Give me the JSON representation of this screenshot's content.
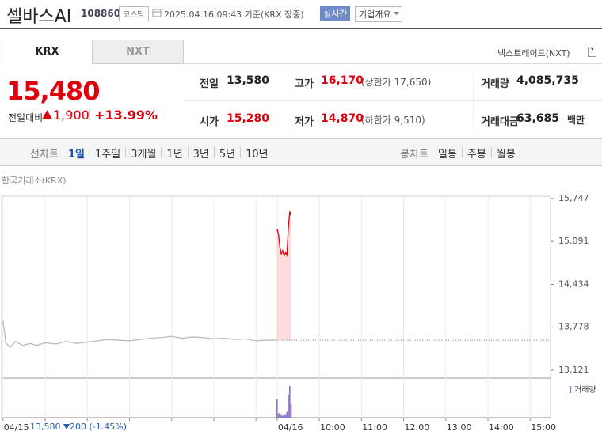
{
  "header": {
    "name": "셀바스AI",
    "code": "108860",
    "market": "코스닥",
    "timestamp": "2025.04.16 09:43 기준(KRX 장중)",
    "realtime": "실시간",
    "company": "기업개요"
  },
  "tabs": [
    "KRX",
    "NXT"
  ],
  "nxt_label": "넥스트레이드(NXT)",
  "help": "?",
  "price": {
    "current": "15,480",
    "change_label": "전일대비",
    "change": "1,900",
    "change_pct": "+13.99%"
  },
  "stats": [
    [
      {
        "label": "전일",
        "value": "13,580"
      },
      {
        "label": "고가",
        "value": "16,170",
        "note": "(상한가 17,650)"
      },
      {
        "label": "거래량",
        "value": "4,085,735"
      }
    ],
    [
      {
        "label": "시가",
        "value": "15,280"
      },
      {
        "label": "저가",
        "value": "14,870",
        "note": "(하한가 9,510)"
      },
      {
        "label": "거래대금",
        "value": "63,685",
        "unit": "백만"
      }
    ]
  ],
  "line_chart_label": "선차트",
  "periods": [
    "1일",
    "1주일",
    "3개월",
    "1년",
    "3년",
    "5년",
    "10년"
  ],
  "candle_label": "봉차트",
  "candles": [
    "일봉",
    "주봉",
    "월봉"
  ],
  "source": "한국거래소(KRX)",
  "footer": {
    "prev_close": "13,580",
    "change": "200",
    "pct": "(-1.45%)"
  },
  "chart_data": [
    {
      "type": "line",
      "xlim": [
        -392,
        389
      ],
      "xticks": [
        {
          "value": -390,
          "label": "04/15"
        },
        {
          "value": -330,
          "label": null
        },
        {
          "value": -270,
          "label": null
        },
        {
          "value": -210,
          "label": null
        },
        {
          "value": -150,
          "label": null
        },
        {
          "value": -90,
          "label": null
        },
        {
          "value": -30,
          "label": null
        },
        {
          "value": 0,
          "label": "04/16"
        },
        {
          "value": 60,
          "label": "10:00"
        },
        {
          "value": 120,
          "label": "11:00"
        },
        {
          "value": 180,
          "label": "12:00"
        },
        {
          "value": 240,
          "label": "13:00"
        },
        {
          "value": 300,
          "label": "14:00"
        },
        {
          "value": 360,
          "label": "15:00"
        }
      ],
      "ylim": [
        13000,
        15783
      ],
      "yticks": [
        {
          "value": 15747,
          "label": "15,747"
        },
        {
          "value": 15091,
          "label": "15,091"
        },
        {
          "value": 14434,
          "label": "14,434"
        },
        {
          "value": 13778,
          "label": "13,778"
        },
        {
          "value": 13121,
          "label": "13,121"
        }
      ],
      "prev_close": 13580,
      "series": [
        {
          "color": "#bbbbbb",
          "x": [
            -390,
            -386,
            -380,
            -372,
            -362,
            -352,
            -342,
            -330,
            -315,
            -300,
            -285,
            -270,
            -255,
            -240,
            -225,
            -210,
            -195,
            -180,
            -165,
            -150,
            -135,
            -120,
            -105,
            -90,
            -75,
            -60,
            -45,
            -30,
            -15,
            -2
          ],
          "values": [
            13880,
            13540,
            13470,
            13560,
            13500,
            13530,
            13500,
            13540,
            13520,
            13560,
            13530,
            13550,
            13570,
            13590,
            13580,
            13570,
            13590,
            13610,
            13620,
            13640,
            13610,
            13630,
            13620,
            13600,
            13610,
            13590,
            13600,
            13570,
            13580,
            13580
          ]
        },
        {
          "color": "#e0000c",
          "fill": "rgba(255,60,60,0.18)",
          "x": [
            0,
            2,
            4,
            6,
            8,
            10,
            12,
            14,
            16,
            18,
            20
          ],
          "values": [
            15280,
            15200,
            15000,
            14900,
            14950,
            14870,
            14920,
            14880,
            15300,
            15550,
            15480
          ]
        }
      ]
    },
    {
      "type": "bar",
      "ylim": [
        0,
        550000
      ],
      "series": [
        {
          "name": "거래량",
          "color": "#8a6fc4",
          "x": [
            0,
            2,
            4,
            6,
            8,
            10,
            12,
            14,
            16,
            18,
            20
          ],
          "values": [
            280000,
            60000,
            80000,
            40000,
            30000,
            50000,
            40000,
            90000,
            350000,
            480000,
            200000
          ]
        }
      ]
    }
  ]
}
